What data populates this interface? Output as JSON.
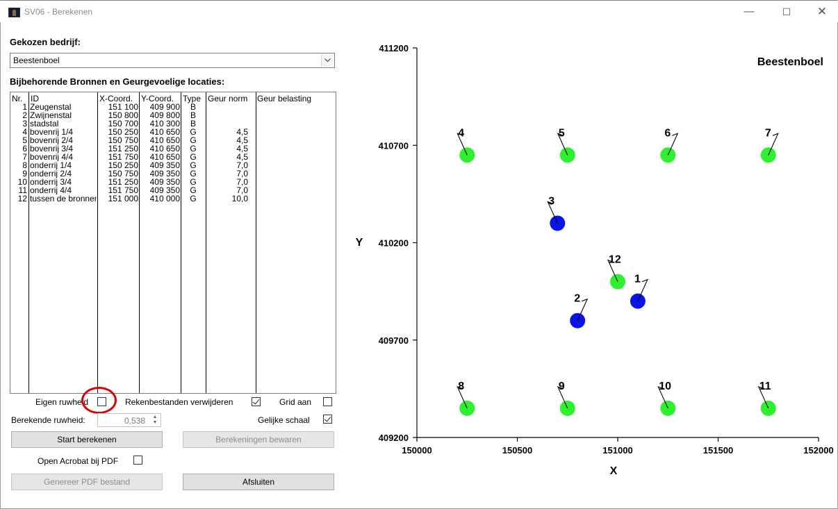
{
  "window": {
    "title": "SV06 - Berekenen",
    "minimize": "—",
    "maximize": "☐",
    "close": "✕"
  },
  "company": {
    "label": "Gekozen bedrijf:",
    "selected": "Beestenboel"
  },
  "sources": {
    "label": "Bijbehorende Bronnen en Geurgevoelige locaties:",
    "columns": [
      "Nr.",
      "ID",
      "X-Coord.",
      "Y-Coord.",
      "Type",
      "Geur norm",
      "Geur belasting"
    ],
    "rows": [
      [
        "1",
        "Zeugenstal",
        "151 100",
        "409 900",
        "B",
        "",
        ""
      ],
      [
        "2",
        "Zwijnenstal",
        "150 800",
        "409 800",
        "B",
        "",
        ""
      ],
      [
        "3",
        "stadstal",
        "150 700",
        "410 300",
        "B",
        "",
        ""
      ],
      [
        "4",
        "bovenrij 1/4",
        "150 250",
        "410 650",
        "G",
        "4,5",
        ""
      ],
      [
        "5",
        "bovenrij 2/4",
        "150 750",
        "410 650",
        "G",
        "4,5",
        ""
      ],
      [
        "6",
        "bovenrij 3/4",
        "151 250",
        "410 650",
        "G",
        "4,5",
        ""
      ],
      [
        "7",
        "bovenrij 4/4",
        "151 750",
        "410 650",
        "G",
        "4,5",
        ""
      ],
      [
        "8",
        "onderrij 1/4",
        "150 250",
        "409 350",
        "G",
        "7,0",
        ""
      ],
      [
        "9",
        "onderrij 2/4",
        "150 750",
        "409 350",
        "G",
        "7,0",
        ""
      ],
      [
        "10",
        "onderrij 3/4",
        "151 250",
        "409 350",
        "G",
        "7,0",
        ""
      ],
      [
        "11",
        "onderrij 4/4",
        "151 750",
        "409 350",
        "G",
        "7,0",
        ""
      ],
      [
        "12",
        "tussen de bronnen",
        "151 000",
        "410 000",
        "G",
        "10,0",
        ""
      ]
    ]
  },
  "options": {
    "eigen_ruwheid": {
      "label": "Eigen ruwheid",
      "checked": false
    },
    "rekenbestanden": {
      "label": "Rekenbestanden verwijderen",
      "checked": true
    },
    "grid": {
      "label": "Grid aan",
      "checked": false
    },
    "ruwheid_label": "Berekende ruwheid:",
    "ruwheid_value": "0,538",
    "gelijke_schaal": {
      "label": "Gelijke schaal",
      "checked": true
    },
    "open_acrobat": {
      "label": "Open Acrobat bij PDF",
      "checked": false
    }
  },
  "buttons": {
    "start": "Start berekenen",
    "bewaren": "Berekeningen bewaren",
    "pdf": "Genereer PDF bestand",
    "afsluiten": "Afsluiten"
  },
  "chart_data": {
    "type": "scatter",
    "title": "Beestenboel",
    "xlabel": "X",
    "ylabel": "Y",
    "xlim": [
      150000,
      152000
    ],
    "ylim": [
      409200,
      411200
    ],
    "x_ticks": [
      150000,
      150500,
      151000,
      151500,
      152000
    ],
    "y_ticks": [
      409200,
      409700,
      410200,
      410700,
      411200
    ],
    "colors": {
      "B": "#0a14e6",
      "G": "#2ef02e"
    },
    "points": [
      {
        "label": "1",
        "x": 151100,
        "y": 409900,
        "type": "B"
      },
      {
        "label": "2",
        "x": 150800,
        "y": 409800,
        "type": "B"
      },
      {
        "label": "3",
        "x": 150700,
        "y": 410300,
        "type": "B"
      },
      {
        "label": "4",
        "x": 150250,
        "y": 410650,
        "type": "G"
      },
      {
        "label": "5",
        "x": 150750,
        "y": 410650,
        "type": "G"
      },
      {
        "label": "6",
        "x": 151250,
        "y": 410650,
        "type": "G"
      },
      {
        "label": "7",
        "x": 151750,
        "y": 410650,
        "type": "G"
      },
      {
        "label": "8",
        "x": 150250,
        "y": 409350,
        "type": "G"
      },
      {
        "label": "9",
        "x": 150750,
        "y": 409350,
        "type": "G"
      },
      {
        "label": "10",
        "x": 151250,
        "y": 409350,
        "type": "G"
      },
      {
        "label": "11",
        "x": 151750,
        "y": 409350,
        "type": "G"
      },
      {
        "label": "12",
        "x": 151000,
        "y": 410000,
        "type": "G"
      }
    ]
  }
}
